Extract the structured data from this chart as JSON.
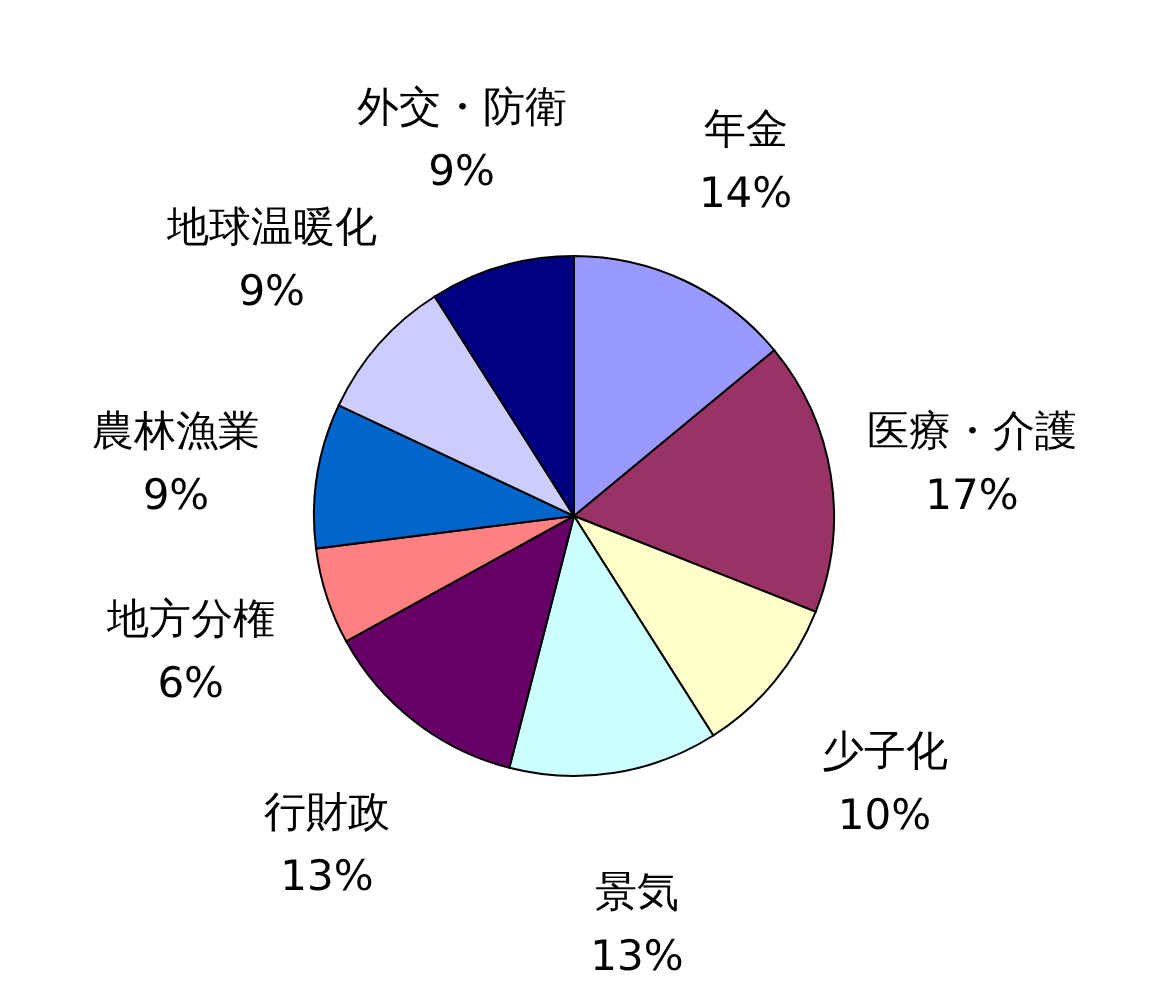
{
  "chart_data": {
    "type": "pie",
    "categories": [
      "年金",
      "医療・介護",
      "少子化",
      "景気",
      "行財政",
      "地方分権",
      "農林漁業",
      "地球温暖化",
      "外交・防衛"
    ],
    "values": [
      14,
      17,
      10,
      13,
      13,
      6,
      9,
      9,
      9
    ],
    "value_labels": [
      "14%",
      "17%",
      "10%",
      "13%",
      "13%",
      "6%",
      "9%",
      "9%",
      "9%"
    ],
    "colors": [
      "#9999ff",
      "#993366",
      "#ffffcc",
      "#ccffff",
      "#660066",
      "#ff8080",
      "#0066cc",
      "#ccccff",
      "#000080"
    ]
  }
}
